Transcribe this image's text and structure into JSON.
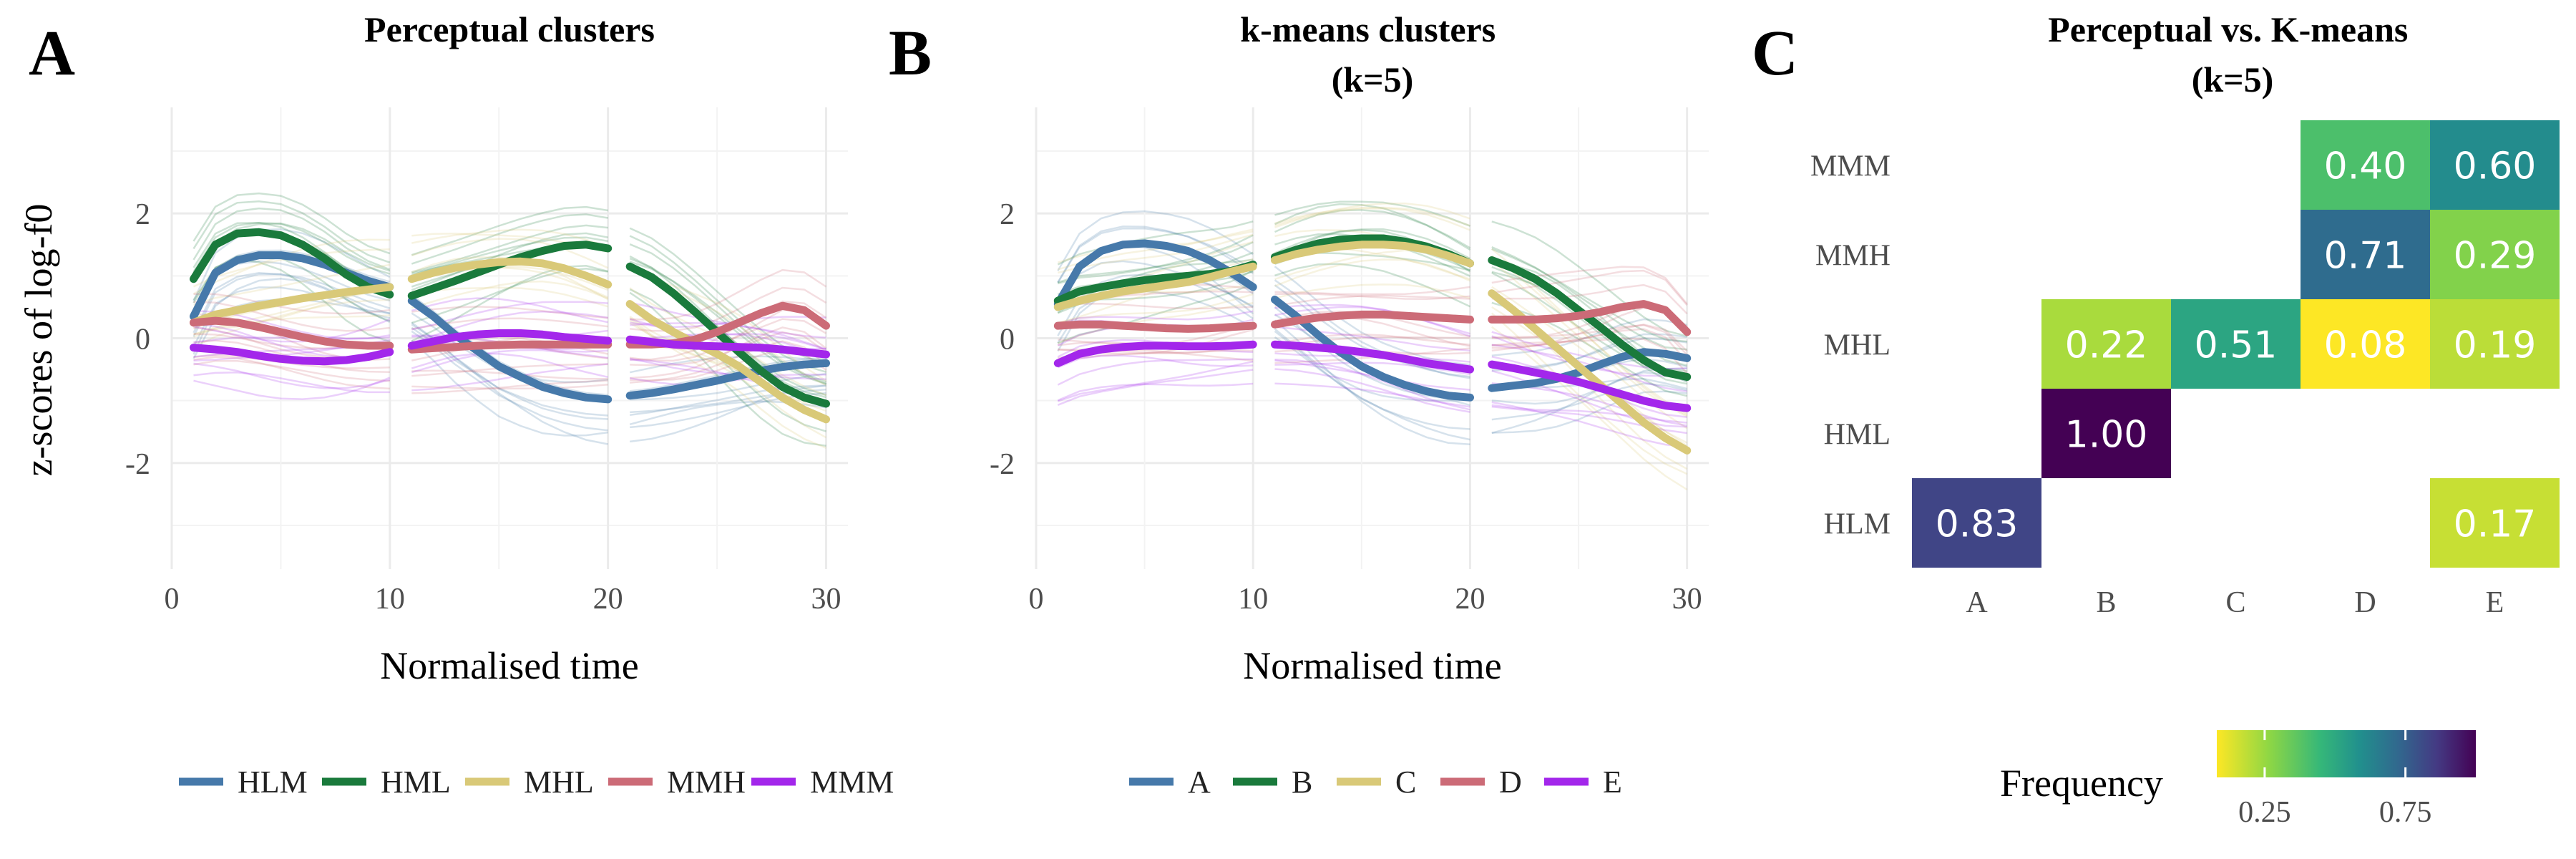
{
  "figure": {
    "panel_letters": [
      "A",
      "B",
      "C"
    ],
    "y_axis_label": "z-scores of log-f0",
    "x_axis_label": "Normalised time"
  },
  "chart_data": [
    {
      "panel": "A",
      "type": "line",
      "title": "Perceptual clusters",
      "xlabel": "Normalised time",
      "ylabel": "z-scores of log-f0",
      "xlim": [
        0,
        31
      ],
      "ylim": [
        -3.7,
        3.7
      ],
      "xticks": [
        0,
        10,
        20,
        30
      ],
      "yticks": [
        -2,
        0,
        2
      ],
      "grid": true,
      "segments": [
        [
          1,
          10
        ],
        [
          11,
          20
        ],
        [
          21,
          30
        ]
      ],
      "legend_position": "bottom",
      "series": [
        {
          "name": "HLM",
          "color": "#4679aa",
          "y": [
            0.35,
            1.05,
            1.25,
            1.33,
            1.33,
            1.28,
            1.18,
            1.05,
            0.92,
            0.82,
            0.6,
            0.35,
            0.05,
            -0.2,
            -0.45,
            -0.62,
            -0.78,
            -0.88,
            -0.95,
            -0.98,
            -0.92,
            -0.88,
            -0.82,
            -0.75,
            -0.68,
            -0.6,
            -0.52,
            -0.46,
            -0.42,
            -0.4
          ]
        },
        {
          "name": "HML",
          "color": "#1a7a3c",
          "y": [
            0.95,
            1.5,
            1.68,
            1.7,
            1.65,
            1.5,
            1.28,
            1.02,
            0.82,
            0.7,
            0.68,
            0.8,
            0.92,
            1.05,
            1.18,
            1.3,
            1.4,
            1.48,
            1.5,
            1.44,
            1.15,
            0.98,
            0.72,
            0.42,
            0.1,
            -0.22,
            -0.52,
            -0.78,
            -0.95,
            -1.05
          ]
        },
        {
          "name": "MHL",
          "color": "#d9c978",
          "y": [
            0.25,
            0.38,
            0.45,
            0.52,
            0.58,
            0.64,
            0.69,
            0.74,
            0.78,
            0.82,
            0.95,
            1.05,
            1.13,
            1.18,
            1.22,
            1.23,
            1.2,
            1.12,
            1.0,
            0.86,
            0.55,
            0.3,
            0.1,
            -0.08,
            -0.25,
            -0.45,
            -0.7,
            -0.95,
            -1.15,
            -1.3
          ]
        },
        {
          "name": "MMH",
          "color": "#cc6b77",
          "y": [
            0.25,
            0.28,
            0.25,
            0.18,
            0.1,
            0.02,
            -0.05,
            -0.1,
            -0.12,
            -0.12,
            -0.18,
            -0.16,
            -0.14,
            -0.12,
            -0.11,
            -0.1,
            -0.1,
            -0.1,
            -0.1,
            -0.1,
            -0.1,
            -0.1,
            -0.08,
            -0.02,
            0.1,
            0.25,
            0.4,
            0.52,
            0.45,
            0.2
          ]
        },
        {
          "name": "MMM",
          "color": "#a327eb",
          "y": [
            -0.15,
            -0.18,
            -0.22,
            -0.28,
            -0.33,
            -0.36,
            -0.37,
            -0.35,
            -0.3,
            -0.22,
            -0.12,
            -0.05,
            0.02,
            0.06,
            0.08,
            0.08,
            0.06,
            0.02,
            -0.01,
            -0.04,
            -0.02,
            -0.06,
            -0.1,
            -0.12,
            -0.13,
            -0.14,
            -0.15,
            -0.18,
            -0.22,
            -0.26
          ]
        }
      ]
    },
    {
      "panel": "B",
      "type": "line",
      "title": "k-means clusters\n(k=5)",
      "xlabel": "Normalised time",
      "ylabel": "",
      "xlim": [
        0,
        31
      ],
      "ylim": [
        -3.7,
        3.7
      ],
      "xticks": [
        0,
        10,
        20,
        30
      ],
      "yticks": [
        -2,
        0,
        2
      ],
      "grid": true,
      "segments": [
        [
          1,
          10
        ],
        [
          11,
          20
        ],
        [
          21,
          30
        ]
      ],
      "legend_position": "bottom",
      "series": [
        {
          "name": "A",
          "color": "#4679aa",
          "y": [
            0.55,
            1.15,
            1.4,
            1.5,
            1.52,
            1.48,
            1.4,
            1.25,
            1.05,
            0.82,
            0.62,
            0.35,
            0.05,
            -0.22,
            -0.45,
            -0.62,
            -0.75,
            -0.85,
            -0.92,
            -0.95,
            -0.8,
            -0.76,
            -0.72,
            -0.65,
            -0.55,
            -0.42,
            -0.3,
            -0.22,
            -0.25,
            -0.32
          ]
        },
        {
          "name": "B",
          "color": "#1a7a3c",
          "y": [
            0.6,
            0.75,
            0.82,
            0.88,
            0.93,
            0.97,
            1.0,
            1.03,
            1.08,
            1.18,
            1.3,
            1.42,
            1.52,
            1.58,
            1.6,
            1.6,
            1.55,
            1.47,
            1.35,
            1.2,
            1.25,
            1.12,
            0.95,
            0.72,
            0.45,
            0.18,
            -0.1,
            -0.35,
            -0.55,
            -0.62
          ]
        },
        {
          "name": "C",
          "color": "#d9c978",
          "y": [
            0.5,
            0.6,
            0.68,
            0.75,
            0.8,
            0.85,
            0.9,
            0.98,
            1.07,
            1.15,
            1.25,
            1.35,
            1.42,
            1.47,
            1.5,
            1.5,
            1.48,
            1.42,
            1.32,
            1.2,
            0.72,
            0.45,
            0.15,
            -0.15,
            -0.45,
            -0.75,
            -1.05,
            -1.35,
            -1.6,
            -1.8
          ]
        },
        {
          "name": "D",
          "color": "#cc6b77",
          "y": [
            0.2,
            0.22,
            0.22,
            0.2,
            0.18,
            0.16,
            0.15,
            0.16,
            0.18,
            0.2,
            0.22,
            0.28,
            0.33,
            0.36,
            0.38,
            0.38,
            0.36,
            0.34,
            0.32,
            0.3,
            0.3,
            0.3,
            0.3,
            0.32,
            0.36,
            0.42,
            0.5,
            0.55,
            0.45,
            0.1
          ]
        },
        {
          "name": "E",
          "color": "#a327eb",
          "y": [
            -0.4,
            -0.25,
            -0.18,
            -0.14,
            -0.12,
            -0.12,
            -0.13,
            -0.13,
            -0.12,
            -0.1,
            -0.1,
            -0.12,
            -0.15,
            -0.18,
            -0.22,
            -0.27,
            -0.33,
            -0.4,
            -0.45,
            -0.5,
            -0.42,
            -0.48,
            -0.55,
            -0.62,
            -0.7,
            -0.8,
            -0.9,
            -1.0,
            -1.08,
            -1.12
          ]
        }
      ]
    },
    {
      "panel": "C",
      "type": "heatmap",
      "title": "Perceptual vs. K-means\n(k=5)",
      "x_categories": [
        "A",
        "B",
        "C",
        "D",
        "E"
      ],
      "y_categories": [
        "MMM",
        "MMH",
        "MHL",
        "HML",
        "HLM"
      ],
      "cells": [
        {
          "y": "MMM",
          "x": "D",
          "value": 0.4,
          "label": "0.40"
        },
        {
          "y": "MMM",
          "x": "E",
          "value": 0.6,
          "label": "0.60"
        },
        {
          "y": "MMH",
          "x": "D",
          "value": 0.71,
          "label": "0.71"
        },
        {
          "y": "MMH",
          "x": "E",
          "value": 0.29,
          "label": "0.29"
        },
        {
          "y": "MHL",
          "x": "B",
          "value": 0.22,
          "label": "0.22"
        },
        {
          "y": "MHL",
          "x": "C",
          "value": 0.51,
          "label": "0.51"
        },
        {
          "y": "MHL",
          "x": "D",
          "value": 0.08,
          "label": "0.08"
        },
        {
          "y": "MHL",
          "x": "E",
          "value": 0.19,
          "label": "0.19"
        },
        {
          "y": "HML",
          "x": "B",
          "value": 1.0,
          "label": "1.00"
        },
        {
          "y": "HLM",
          "x": "A",
          "value": 0.83,
          "label": "0.83"
        },
        {
          "y": "HLM",
          "x": "E",
          "value": 0.17,
          "label": "0.17"
        }
      ],
      "colorbar": {
        "title": "Frequency",
        "range": [
          0.08,
          1.0
        ],
        "ticks": [
          0.25,
          0.75
        ],
        "tick_labels": [
          "0.25",
          "0.75"
        ],
        "palette": "viridis (reversed)"
      }
    }
  ]
}
